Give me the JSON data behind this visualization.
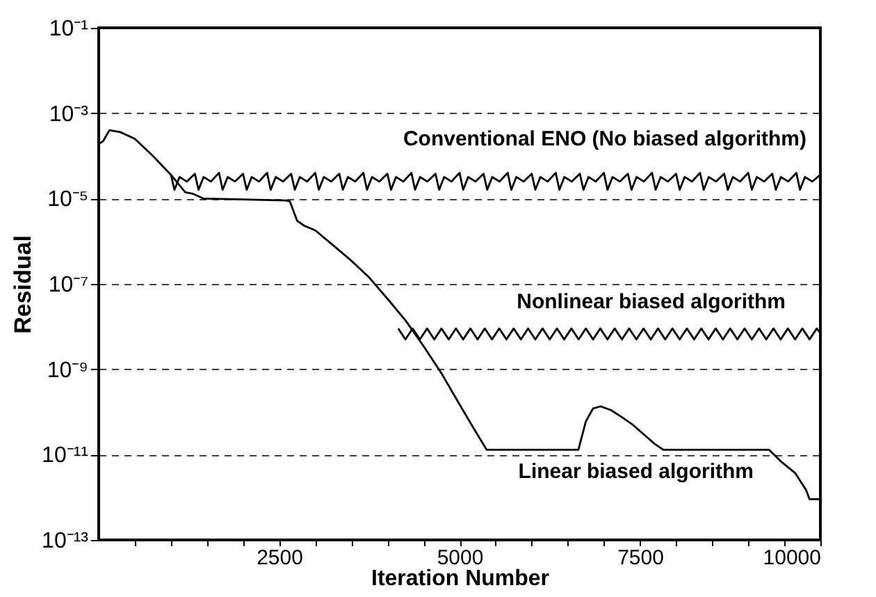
{
  "chart_data": {
    "type": "line",
    "xlabel": "Iteration Number",
    "ylabel": "Residual",
    "log": "y",
    "grid": "y",
    "xlim": [
      0,
      10000
    ],
    "xticks": [
      {
        "value": 500,
        "label": null
      },
      {
        "value": 1000,
        "label": null
      },
      {
        "value": 1500,
        "label": null
      },
      {
        "value": 2000,
        "label": null
      },
      2500,
      {
        "value": 3000,
        "label": null
      },
      {
        "value": 3500,
        "label": null
      },
      {
        "value": 4000,
        "label": null
      },
      {
        "value": 4500,
        "label": null
      },
      5000,
      {
        "value": 5500,
        "label": null
      },
      {
        "value": 6000,
        "label": null
      },
      {
        "value": 6500,
        "label": null
      },
      {
        "value": 7000,
        "label": null
      },
      7500,
      {
        "value": 8000,
        "label": null
      },
      {
        "value": 8500,
        "label": null
      },
      {
        "value": 9000,
        "label": null
      },
      {
        "value": 9500,
        "label": null
      },
      10000
    ],
    "ylim": [
      1e-13,
      0.1
    ],
    "yticks": [
      {
        "value": 1e-13,
        "label": "10⁻¹³"
      },
      {
        "value": 1e-11,
        "label": "10⁻¹¹"
      },
      {
        "value": 1e-09,
        "label": "10⁻⁹"
      },
      {
        "value": 1e-07,
        "label": "10⁻⁷"
      },
      {
        "value": 1e-05,
        "label": "10⁻⁵"
      },
      {
        "value": 0.001,
        "label": "10⁻³"
      },
      {
        "value": 0.1,
        "label": "10⁻¹"
      }
    ],
    "series": [
      {
        "name": "Conventional ENO (No biased algorithm)",
        "color": "#000000",
        "x": [
          1000,
          1050,
          1120,
          1220,
          1333,
          1383,
          1453,
          1553,
          1667,
          1717,
          1787,
          1887,
          2000,
          2050,
          2120,
          2220,
          2333,
          2383,
          2453,
          2553,
          2667,
          2717,
          2787,
          2887,
          3000,
          3050,
          3120,
          3220,
          3333,
          3383,
          3453,
          3553,
          3667,
          3717,
          3787,
          3887,
          4000,
          4050,
          4120,
          4220,
          4333,
          4383,
          4453,
          4553,
          4667,
          4717,
          4787,
          4887,
          5000,
          5050,
          5120,
          5220,
          5333,
          5383,
          5453,
          5553,
          5667,
          5717,
          5787,
          5887,
          6000,
          6050,
          6120,
          6220,
          6333,
          6383,
          6453,
          6553,
          6667,
          6717,
          6787,
          6887,
          7000,
          7050,
          7120,
          7220,
          7333,
          7383,
          7453,
          7553,
          7667,
          7717,
          7787,
          7887,
          8000,
          8050,
          8120,
          8220,
          8333,
          8383,
          8453,
          8553,
          8667,
          8717,
          8787,
          8887,
          9000,
          9050,
          9120,
          9220,
          9333,
          9383,
          9453,
          9553,
          9667,
          9717,
          9787,
          9887,
          10000
        ],
        "values": [
          3.6e-05,
          1.6e-05,
          3.2e-05,
          2.5e-05,
          3.8e-05,
          1.6e-05,
          3.2e-05,
          2.5e-05,
          4e-05,
          1.6e-05,
          3.2e-05,
          2.5e-05,
          3.8e-05,
          1.6e-05,
          3.2e-05,
          2.5e-05,
          4e-05,
          1.6e-05,
          3.2e-05,
          2.5e-05,
          3.8e-05,
          1.6e-05,
          3.2e-05,
          2.5e-05,
          4e-05,
          1.6e-05,
          3.2e-05,
          2.5e-05,
          3.8e-05,
          1.6e-05,
          3.2e-05,
          2.5e-05,
          4e-05,
          1.6e-05,
          3.2e-05,
          2.5e-05,
          3.8e-05,
          1.6e-05,
          3.2e-05,
          2.5e-05,
          4e-05,
          1.6e-05,
          3.2e-05,
          2.5e-05,
          3.8e-05,
          1.6e-05,
          3.2e-05,
          2.5e-05,
          4e-05,
          1.6e-05,
          3.2e-05,
          2.5e-05,
          3.8e-05,
          1.6e-05,
          3.2e-05,
          2.5e-05,
          4e-05,
          1.6e-05,
          3.2e-05,
          2.5e-05,
          3.8e-05,
          1.6e-05,
          3.2e-05,
          2.5e-05,
          4e-05,
          1.6e-05,
          3.2e-05,
          2.5e-05,
          3.8e-05,
          1.6e-05,
          3.2e-05,
          2.5e-05,
          4e-05,
          1.6e-05,
          3.2e-05,
          2.5e-05,
          3.8e-05,
          1.6e-05,
          3.2e-05,
          2.5e-05,
          4e-05,
          1.6e-05,
          3.2e-05,
          2.5e-05,
          3.8e-05,
          1.6e-05,
          3.2e-05,
          2.5e-05,
          4e-05,
          1.6e-05,
          3.2e-05,
          2.5e-05,
          3.8e-05,
          1.6e-05,
          3.2e-05,
          2.5e-05,
          4e-05,
          1.6e-05,
          3.2e-05,
          2.5e-05,
          3.8e-05,
          1.6e-05,
          3.2e-05,
          2.5e-05,
          4e-05,
          1.6e-05,
          3.2e-05,
          2.5e-05,
          3.6e-05
        ]
      },
      {
        "name": "Nonlinear biased algorithm",
        "color": "#000000",
        "x": [
          4150,
          4250,
          4350,
          4450,
          4550,
          4650,
          4750,
          4850,
          4950,
          5050,
          5150,
          5250,
          5350,
          5450,
          5550,
          5650,
          5750,
          5850,
          5950,
          6050,
          6150,
          6250,
          6350,
          6450,
          6550,
          6650,
          6750,
          6850,
          6950,
          7050,
          7150,
          7250,
          7350,
          7450,
          7550,
          7650,
          7750,
          7850,
          7950,
          8050,
          8150,
          8250,
          8350,
          8450,
          8550,
          8650,
          8750,
          8850,
          8950,
          9050,
          9150,
          9250,
          9350,
          9450,
          9550,
          9650,
          9750,
          9850,
          9950,
          10000
        ],
        "values": [
          9e-09,
          5e-09,
          9e-09,
          5e-09,
          9e-09,
          5e-09,
          9e-09,
          5e-09,
          9e-09,
          5e-09,
          9e-09,
          5e-09,
          9e-09,
          5e-09,
          9e-09,
          5e-09,
          9e-09,
          5e-09,
          9e-09,
          5e-09,
          9e-09,
          5e-09,
          9e-09,
          5e-09,
          9e-09,
          5e-09,
          9e-09,
          5e-09,
          9e-09,
          5e-09,
          9e-09,
          5e-09,
          9e-09,
          5e-09,
          9e-09,
          5e-09,
          9e-09,
          5e-09,
          9e-09,
          5e-09,
          9e-09,
          5e-09,
          9e-09,
          5e-09,
          9e-09,
          5e-09,
          9e-09,
          5e-09,
          9e-09,
          5e-09,
          9e-09,
          5e-09,
          9e-09,
          5e-09,
          9e-09,
          5e-09,
          9e-09,
          5e-09,
          9e-09,
          7e-09
        ]
      },
      {
        "name": "Linear biased algorithm",
        "color": "#000000",
        "x": [
          0,
          60,
          150,
          300,
          500,
          750,
          1000,
          1200,
          1300,
          1450,
          2000,
          2600,
          2650,
          2750,
          2850,
          3000,
          3250,
          3500,
          3750,
          4000,
          4250,
          4500,
          4750,
          5000,
          5200,
          5375,
          6000,
          6647,
          6750,
          6850,
          6956,
          7100,
          7250,
          7400,
          7550,
          7700,
          7823,
          8500,
          9287,
          9450,
          9650,
          9800,
          9850,
          10000
        ],
        "values": [
          0.00019,
          0.00022,
          0.0004,
          0.00036,
          0.00025,
          0.0001,
          3.6e-05,
          1.4e-05,
          1.3e-05,
          1e-05,
          9.5e-06,
          9e-06,
          8.5e-06,
          3e-06,
          2.3e-06,
          1.8e-06,
          8e-07,
          3.5e-07,
          1.4e-07,
          4.5e-08,
          1.4e-08,
          3.5e-09,
          8e-10,
          1.5e-10,
          4e-11,
          1.3e-11,
          1.3e-11,
          1.3e-11,
          6e-11,
          1.2e-10,
          1.35e-10,
          1.1e-10,
          7.5e-11,
          5e-11,
          3e-11,
          1.8e-11,
          1.3e-11,
          1.3e-11,
          1.3e-11,
          7e-12,
          3.7e-12,
          1.5e-12,
          9e-13,
          9e-13
        ]
      }
    ]
  }
}
